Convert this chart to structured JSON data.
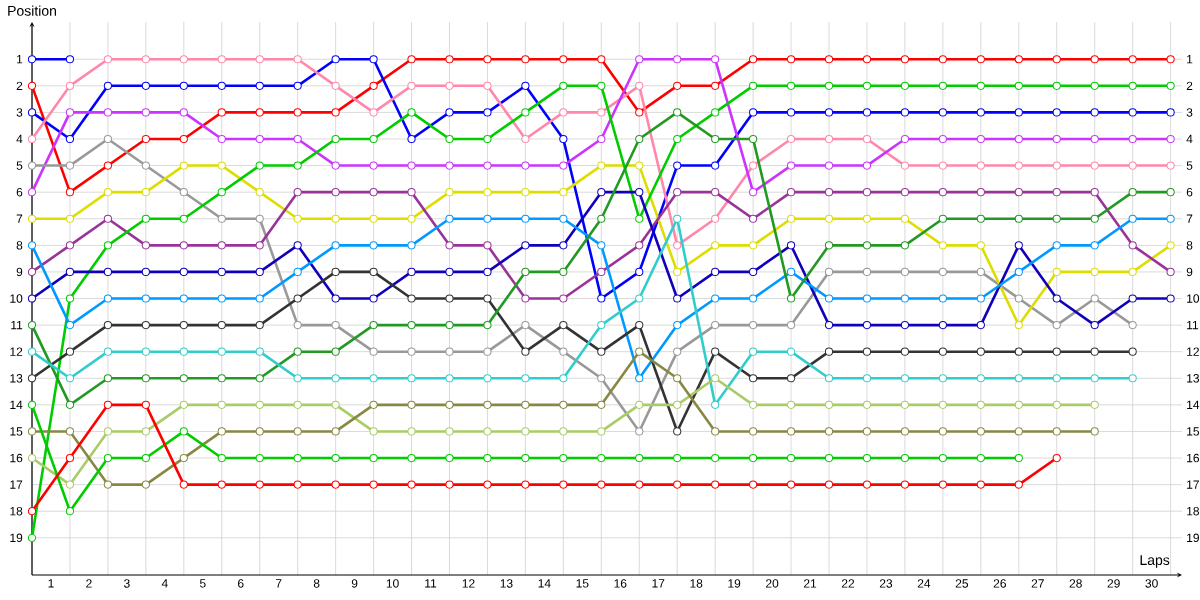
{
  "chart_data": {
    "type": "line",
    "xlabel": "Laps",
    "ylabel": "Position",
    "x": [
      0,
      1,
      2,
      3,
      4,
      5,
      6,
      7,
      8,
      9,
      10,
      11,
      12,
      13,
      14,
      15,
      16,
      17,
      18,
      19,
      20,
      21,
      22,
      23,
      24,
      25,
      26,
      27,
      28,
      29,
      30
    ],
    "series": [
      {
        "color": "#ff0000",
        "values": [
          2,
          6,
          5,
          4,
          4,
          3,
          3,
          3,
          3,
          2,
          1,
          1,
          1,
          1,
          1,
          1,
          3,
          2,
          2,
          1,
          1,
          1,
          1,
          1,
          1,
          1,
          1,
          1,
          1,
          1,
          1
        ]
      },
      {
        "color": "#0000ff",
        "values": [
          3,
          4,
          2,
          2,
          2,
          2,
          2,
          2,
          1,
          1,
          4,
          3,
          3,
          2,
          4,
          10,
          9,
          5,
          5,
          3,
          3,
          3,
          3,
          3,
          3,
          3,
          3,
          3,
          3,
          3,
          3
        ]
      },
      {
        "color": "#ff88aa",
        "values": [
          4,
          2,
          1,
          1,
          1,
          1,
          1,
          1,
          2,
          3,
          2,
          2,
          2,
          4,
          3,
          3,
          2,
          8,
          7,
          5,
          4,
          4,
          4,
          5,
          5,
          5,
          5,
          5,
          5,
          5,
          5
        ]
      },
      {
        "color": "#cc33ff",
        "values": [
          6,
          3,
          3,
          3,
          3,
          4,
          4,
          4,
          5,
          5,
          5,
          5,
          5,
          5,
          5,
          4,
          1,
          1,
          1,
          6,
          5,
          5,
          5,
          4,
          4,
          4,
          4,
          4,
          4,
          4,
          4
        ]
      },
      {
        "color": "#999999",
        "values": [
          5,
          5,
          4,
          5,
          6,
          7,
          7,
          11,
          11,
          12,
          12,
          12,
          12,
          11,
          12,
          13,
          15,
          12,
          11,
          11,
          11,
          9,
          9,
          9,
          9,
          9,
          10,
          11,
          10,
          11,
          null
        ]
      },
      {
        "color": "#dddd00",
        "values": [
          7,
          7,
          6,
          6,
          5,
          5,
          6,
          7,
          7,
          7,
          7,
          6,
          6,
          6,
          6,
          5,
          5,
          9,
          8,
          8,
          7,
          7,
          7,
          7,
          8,
          8,
          11,
          9,
          9,
          9,
          8
        ]
      },
      {
        "color": "#993399",
        "values": [
          9,
          8,
          7,
          8,
          8,
          8,
          8,
          6,
          6,
          6,
          6,
          8,
          8,
          10,
          10,
          9,
          8,
          6,
          6,
          7,
          6,
          6,
          6,
          6,
          6,
          6,
          6,
          6,
          6,
          8,
          9
        ]
      },
      {
        "color": "#00cc00",
        "values": [
          19,
          10,
          8,
          7,
          7,
          6,
          5,
          5,
          4,
          4,
          3,
          4,
          4,
          3,
          2,
          2,
          7,
          4,
          3,
          2,
          2,
          2,
          2,
          2,
          2,
          2,
          2,
          2,
          2,
          2,
          2
        ]
      },
      {
        "color": "#1100bb",
        "values": [
          10,
          9,
          9,
          9,
          9,
          9,
          9,
          8,
          10,
          10,
          9,
          9,
          9,
          8,
          8,
          6,
          6,
          10,
          9,
          9,
          8,
          11,
          11,
          11,
          11,
          11,
          8,
          10,
          11,
          10,
          10
        ]
      },
      {
        "color": "#0099ff",
        "values": [
          8,
          11,
          10,
          10,
          10,
          10,
          10,
          9,
          8,
          8,
          8,
          7,
          7,
          7,
          7,
          8,
          13,
          11,
          10,
          10,
          9,
          10,
          10,
          10,
          10,
          10,
          9,
          8,
          8,
          7,
          7
        ]
      },
      {
        "color": "#333333",
        "values": [
          13,
          12,
          11,
          11,
          11,
          11,
          11,
          10,
          9,
          9,
          10,
          10,
          10,
          12,
          11,
          12,
          11,
          15,
          12,
          13,
          13,
          12,
          12,
          12,
          12,
          12,
          12,
          12,
          12,
          12,
          null
        ]
      },
      {
        "color": "#229922",
        "values": [
          11,
          14,
          13,
          13,
          13,
          13,
          13,
          12,
          12,
          11,
          11,
          11,
          11,
          9,
          9,
          7,
          4,
          3,
          4,
          4,
          10,
          8,
          8,
          8,
          7,
          7,
          7,
          7,
          7,
          6,
          6
        ]
      },
      {
        "color": "#33cccc",
        "values": [
          12,
          13,
          12,
          12,
          12,
          12,
          12,
          13,
          13,
          13,
          13,
          13,
          13,
          13,
          13,
          11,
          10,
          7,
          14,
          12,
          12,
          13,
          13,
          13,
          13,
          13,
          13,
          13,
          13,
          13,
          null
        ]
      },
      {
        "color": "#aacc66",
        "values": [
          16,
          17,
          15,
          15,
          14,
          14,
          14,
          14,
          14,
          15,
          15,
          15,
          15,
          15,
          15,
          15,
          14,
          14,
          13,
          14,
          14,
          14,
          14,
          14,
          14,
          14,
          14,
          14,
          14,
          null,
          null
        ]
      },
      {
        "color": "#888844",
        "values": [
          15,
          15,
          17,
          17,
          16,
          15,
          15,
          15,
          15,
          14,
          14,
          14,
          14,
          14,
          14,
          14,
          12,
          13,
          15,
          15,
          15,
          15,
          15,
          15,
          15,
          15,
          15,
          15,
          15,
          null,
          null
        ]
      },
      {
        "color": "#00cc00",
        "values": [
          14,
          18,
          16,
          16,
          15,
          16,
          16,
          16,
          16,
          16,
          16,
          16,
          16,
          16,
          16,
          16,
          16,
          16,
          16,
          16,
          16,
          16,
          16,
          16,
          16,
          16,
          16,
          null,
          null,
          null,
          null
        ]
      },
      {
        "color": "#ff0000",
        "values": [
          18,
          16,
          14,
          14,
          17,
          17,
          17,
          17,
          17,
          17,
          17,
          17,
          17,
          17,
          17,
          17,
          17,
          17,
          17,
          17,
          17,
          17,
          17,
          17,
          17,
          17,
          17,
          16,
          null,
          null,
          null
        ]
      },
      {
        "color": "#0000ff",
        "values": [
          1,
          1,
          null,
          null,
          null,
          null,
          null,
          null,
          null,
          null,
          null,
          null,
          null,
          null,
          null,
          null,
          null,
          null,
          null,
          null,
          null,
          null,
          null,
          null,
          null,
          null,
          null,
          null,
          null,
          null,
          null
        ]
      }
    ],
    "xlim": [
      0,
      30.3
    ],
    "xticks": [
      {
        "value": 0,
        "label": null
      },
      {
        "value": 0.5,
        "label": "1"
      },
      {
        "value": 1,
        "label": null
      },
      {
        "value": 1.5,
        "label": "2"
      },
      {
        "value": 2,
        "label": null
      },
      {
        "value": 2.5,
        "label": "3"
      },
      {
        "value": 3,
        "label": null
      },
      {
        "value": 3.5,
        "label": "4"
      },
      {
        "value": 4,
        "label": null
      },
      {
        "value": 4.5,
        "label": "5"
      },
      {
        "value": 5,
        "label": null
      },
      {
        "value": 5.5,
        "label": "6"
      },
      {
        "value": 6,
        "label": null
      },
      {
        "value": 6.5,
        "label": "7"
      },
      {
        "value": 7,
        "label": null
      },
      {
        "value": 7.5,
        "label": "8"
      },
      {
        "value": 8,
        "label": null
      },
      {
        "value": 8.5,
        "label": "9"
      },
      {
        "value": 9,
        "label": null
      },
      {
        "value": 9.5,
        "label": "10"
      },
      {
        "value": 10,
        "label": null
      },
      {
        "value": 10.5,
        "label": "11"
      },
      {
        "value": 11,
        "label": null
      },
      {
        "value": 11.5,
        "label": "12"
      },
      {
        "value": 12,
        "label": null
      },
      {
        "value": 12.5,
        "label": "13"
      },
      {
        "value": 13,
        "label": null
      },
      {
        "value": 13.5,
        "label": "14"
      },
      {
        "value": 14,
        "label": null
      },
      {
        "value": 14.5,
        "label": "15"
      },
      {
        "value": 15,
        "label": null
      },
      {
        "value": 15.5,
        "label": "16"
      },
      {
        "value": 16,
        "label": null
      },
      {
        "value": 16.5,
        "label": "17"
      },
      {
        "value": 17,
        "label": null
      },
      {
        "value": 17.5,
        "label": "18"
      },
      {
        "value": 18,
        "label": null
      },
      {
        "value": 18.5,
        "label": "19"
      },
      {
        "value": 19,
        "label": null
      },
      {
        "value": 19.5,
        "label": "20"
      },
      {
        "value": 20,
        "label": null
      },
      {
        "value": 20.5,
        "label": "21"
      },
      {
        "value": 21,
        "label": null
      },
      {
        "value": 21.5,
        "label": "22"
      },
      {
        "value": 22,
        "label": null
      },
      {
        "value": 22.5,
        "label": "23"
      },
      {
        "value": 23,
        "label": null
      },
      {
        "value": 23.5,
        "label": "24"
      },
      {
        "value": 24,
        "label": null
      },
      {
        "value": 24.5,
        "label": "25"
      },
      {
        "value": 25,
        "label": null
      },
      {
        "value": 25.5,
        "label": "26"
      },
      {
        "value": 26,
        "label": null
      },
      {
        "value": 26.5,
        "label": "27"
      },
      {
        "value": 27,
        "label": null
      },
      {
        "value": 27.5,
        "label": "28"
      },
      {
        "value": 28,
        "label": null
      },
      {
        "value": 28.5,
        "label": "29"
      },
      {
        "value": 29,
        "label": null
      },
      {
        "value": 29.5,
        "label": "30"
      },
      {
        "value": 30,
        "label": null
      }
    ],
    "ylim": [
      20.4,
      -0.4
    ],
    "yticks": [
      1,
      2,
      3,
      4,
      5,
      6,
      7,
      8,
      9,
      10,
      11,
      12,
      13,
      14,
      15,
      16,
      17,
      18,
      19
    ],
    "y2lim": [
      20.4,
      -0.4
    ],
    "y2ticks": [
      1,
      2,
      3,
      4,
      5,
      6,
      7,
      8,
      9,
      10,
      11,
      12,
      13,
      14,
      15,
      16,
      17,
      18,
      19
    ],
    "grid": true,
    "marker": "circle",
    "line_style": "solid"
  }
}
